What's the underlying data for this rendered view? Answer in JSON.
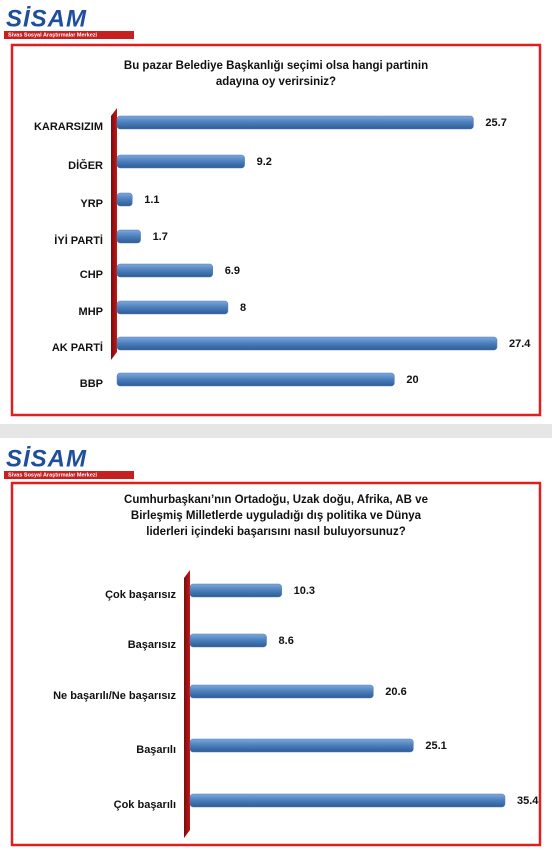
{
  "chart_data": [
    {
      "type": "bar",
      "orientation": "horizontal",
      "logo": {
        "name": "SİSAM",
        "subtitle": "Sivas Sosyal Araştırmalar Merkezi"
      },
      "title": "Bu pazar Belediye Başkanlığı seçimi olsa hangi partinin adayına oy verirsiniz?",
      "categories": [
        "KARARSIZIM",
        "DİĞER",
        "YRP",
        "İYİ PARTİ",
        "CHP",
        "MHP",
        "AK PARTİ",
        "BBP"
      ],
      "values": [
        25.7,
        9.2,
        1.1,
        1.7,
        6.9,
        8,
        27.4,
        20
      ],
      "color": "#4a7ebb"
    },
    {
      "type": "bar",
      "orientation": "horizontal",
      "logo": {
        "name": "SİSAM",
        "subtitle": "Sivas Sosyal Araştırmalar Merkezi"
      },
      "title": "Cumhurbaşkanı’nın Ortadoğu, Uzak doğu, Afrika, AB ve Birleşmiş Milletlerde uyguladığı dış politika ve Dünya liderleri içindeki başarısını nasıl buluyorsunuz?",
      "categories": [
        "Çok başarısız",
        "Başarısız",
        "Ne başarılı/Ne başarısız",
        "Başarılı",
        "Çok başarılı"
      ],
      "values": [
        10.3,
        8.6,
        20.6,
        25.1,
        35.4
      ],
      "color": "#4a7ebb"
    }
  ]
}
